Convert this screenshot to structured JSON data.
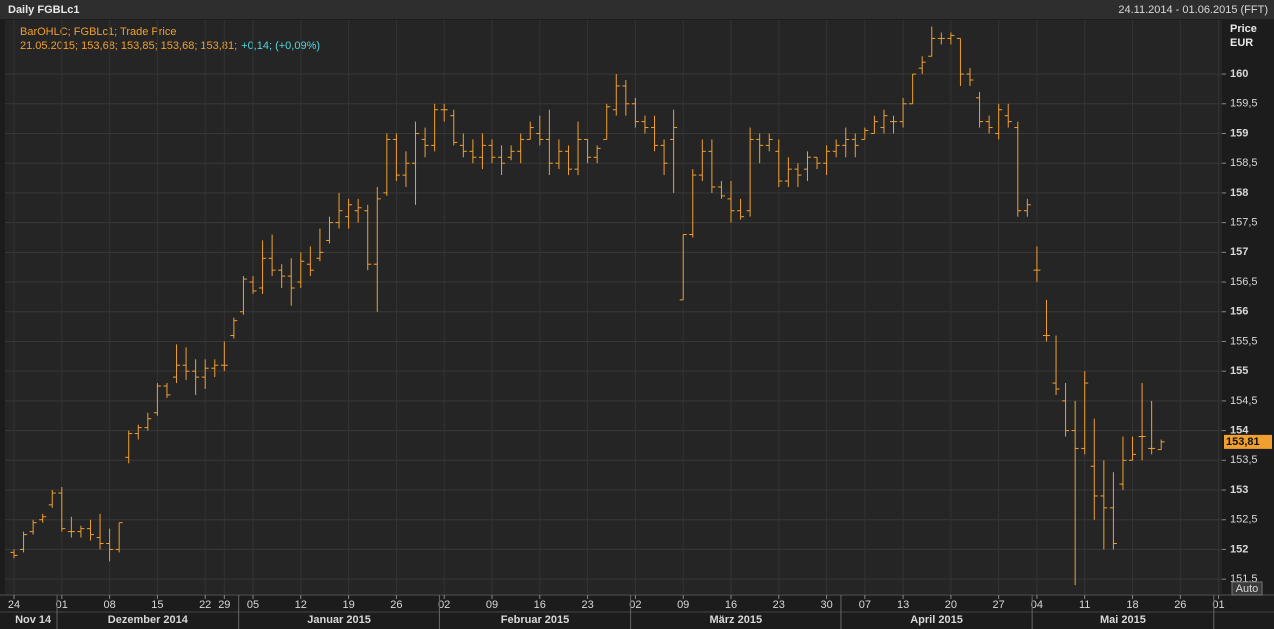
{
  "header": {
    "title": "Daily FGBLc1",
    "range": "24.11.2014 - 01.06.2015 (FFT)"
  },
  "chart_data": {
    "type": "ohlc",
    "legend": "BarOHLC; FGBLc1; Trade Price",
    "readout": "21.05.2015; 153,68; 153,85; 153,68; 153,81;",
    "readout_change": "+0,14; (+0,09%)",
    "y_axis_title": "Price",
    "y_axis_unit": "EUR",
    "auto_button": "Auto",
    "grid": true,
    "last_label": {
      "value": 153.81,
      "label": "153,81"
    },
    "ylim": [
      151.25,
      160.91
    ],
    "yticks": [
      {
        "value": 151.5,
        "label": "151,5"
      },
      152,
      {
        "value": 152.5,
        "label": "152,5"
      },
      153,
      {
        "value": 153.5,
        "label": "153,5"
      },
      154,
      {
        "value": 154.5,
        "label": "154,5"
      },
      155,
      {
        "value": 155.5,
        "label": "155,5"
      },
      156,
      {
        "value": 156.5,
        "label": "156,5"
      },
      157,
      {
        "value": 157.5,
        "label": "157,5"
      },
      158,
      {
        "value": 158.5,
        "label": "158,5"
      },
      159,
      {
        "value": 159.5,
        "label": "159,5"
      },
      160
    ],
    "x_groups": [
      {
        "label": "Nov 14",
        "count": 5
      },
      {
        "label": "Dezember 2014",
        "count": 19
      },
      {
        "label": "Januar 2015",
        "count": 21
      },
      {
        "label": "Februar 2015",
        "count": 20
      },
      {
        "label": "März 2015",
        "count": 22
      },
      {
        "label": "April 2015",
        "count": 20
      },
      {
        "label": "Mai 2015",
        "count": 19
      }
    ],
    "categories": [
      "24",
      null,
      null,
      null,
      null,
      "01",
      null,
      null,
      null,
      null,
      "08",
      null,
      null,
      null,
      null,
      "15",
      null,
      null,
      null,
      null,
      "22",
      null,
      "29",
      null,
      null,
      "05",
      null,
      null,
      null,
      null,
      "12",
      null,
      null,
      null,
      null,
      "19",
      null,
      null,
      null,
      null,
      "26",
      null,
      null,
      null,
      null,
      "02",
      null,
      null,
      null,
      null,
      "09",
      null,
      null,
      null,
      null,
      "16",
      null,
      null,
      null,
      null,
      "23",
      null,
      null,
      null,
      null,
      "02",
      null,
      null,
      null,
      null,
      "09",
      null,
      null,
      null,
      null,
      "16",
      null,
      null,
      null,
      null,
      "23",
      null,
      null,
      null,
      null,
      "30",
      null,
      null,
      null,
      "07",
      null,
      null,
      null,
      "13",
      null,
      null,
      null,
      null,
      "20",
      null,
      null,
      null,
      null,
      "27",
      null,
      null,
      null,
      "04",
      null,
      null,
      null,
      null,
      "11",
      null,
      null,
      null,
      null,
      "18",
      null,
      null,
      null,
      null,
      "26",
      null,
      null,
      null,
      "01"
    ],
    "series": [
      {
        "color": "#f0a030",
        "open": [
          151.95,
          152.0,
          152.3,
          152.5,
          152.75,
          152.95,
          152.3,
          152.3,
          152.35,
          152.2,
          152.1,
          152.0,
          153.55,
          153.95,
          154.05,
          154.3,
          154.75,
          154.9,
          155.1,
          155.0,
          154.9,
          155.05,
          155.1,
          155.6,
          156.0,
          156.5,
          156.4,
          156.9,
          156.7,
          156.6,
          156.5,
          156.8,
          156.9,
          157.2,
          157.5,
          157.6,
          157.7,
          157.7,
          156.8,
          158.0,
          158.9,
          158.3,
          158.5,
          158.9,
          158.8,
          159.4,
          159.3,
          158.8,
          158.7,
          158.6,
          158.8,
          158.6,
          158.6,
          158.7,
          158.9,
          159.0,
          158.9,
          158.5,
          158.7,
          158.4,
          158.9,
          158.6,
          158.9,
          159.4,
          159.8,
          159.5,
          159.2,
          159.1,
          158.8,
          158.9,
          156.2,
          157.3,
          158.3,
          158.7,
          158.1,
          157.9,
          157.7,
          157.7,
          158.9,
          158.8,
          158.7,
          158.2,
          158.4,
          158.4,
          158.6,
          158.5,
          158.7,
          158.8,
          158.9,
          158.9,
          159.0,
          159.1,
          159.2,
          159.2,
          159.5,
          160.1,
          160.3,
          160.6,
          160.6,
          160.6,
          160.0,
          159.6,
          159.2,
          159.0,
          159.3,
          159.1,
          157.7,
          156.7,
          155.6,
          154.8,
          154.5,
          154.0,
          153.7,
          153.4,
          152.9,
          152.7,
          153.1,
          153.5,
          153.9,
          153.7,
          153.68,
          null,
          null,
          null,
          null,
          null,
          null
        ],
        "high": [
          152.0,
          152.3,
          152.5,
          152.6,
          153.0,
          153.05,
          152.55,
          152.4,
          152.5,
          152.6,
          152.35,
          152.45,
          154.0,
          154.1,
          154.3,
          154.8,
          154.8,
          155.45,
          155.4,
          155.2,
          155.2,
          155.2,
          155.5,
          155.9,
          156.6,
          156.6,
          157.2,
          157.3,
          156.8,
          156.9,
          157.0,
          157.1,
          157.4,
          157.6,
          158.0,
          157.9,
          157.9,
          157.8,
          158.1,
          159.0,
          159.0,
          158.7,
          159.2,
          159.1,
          159.5,
          159.5,
          159.4,
          159.0,
          158.9,
          159.0,
          158.9,
          158.8,
          158.8,
          159.0,
          159.2,
          159.3,
          159.4,
          158.9,
          158.8,
          159.2,
          158.9,
          158.8,
          159.5,
          160.0,
          159.9,
          159.6,
          159.3,
          159.3,
          158.9,
          159.4,
          157.3,
          158.4,
          158.9,
          158.9,
          158.2,
          158.2,
          157.9,
          159.1,
          159.0,
          159.0,
          158.9,
          158.6,
          158.5,
          158.7,
          158.6,
          158.8,
          158.9,
          159.1,
          159.0,
          159.1,
          159.3,
          159.4,
          159.3,
          159.6,
          160.0,
          160.3,
          160.8,
          160.7,
          160.7,
          160.6,
          160.1,
          159.7,
          159.3,
          159.5,
          159.5,
          159.2,
          157.9,
          157.1,
          156.2,
          155.6,
          154.8,
          154.5,
          155.0,
          154.2,
          153.5,
          153.3,
          153.9,
          153.9,
          154.8,
          154.5,
          153.85,
          null,
          null,
          null,
          null,
          null,
          null
        ],
        "low": [
          151.85,
          151.95,
          152.25,
          152.45,
          152.7,
          152.3,
          152.2,
          152.2,
          152.15,
          152.0,
          151.8,
          151.95,
          153.45,
          153.85,
          154.0,
          154.25,
          154.55,
          154.8,
          154.85,
          154.6,
          154.7,
          154.9,
          155.0,
          155.55,
          155.95,
          156.3,
          156.3,
          156.6,
          156.4,
          156.1,
          156.4,
          156.6,
          156.85,
          157.15,
          157.4,
          157.4,
          157.5,
          156.7,
          156.0,
          157.95,
          158.2,
          158.1,
          157.8,
          158.6,
          158.7,
          159.2,
          158.8,
          158.6,
          158.5,
          158.4,
          158.5,
          158.3,
          158.55,
          158.5,
          158.9,
          158.8,
          158.3,
          158.4,
          158.3,
          158.3,
          158.5,
          158.5,
          158.9,
          159.3,
          159.3,
          159.1,
          159.0,
          158.7,
          158.3,
          158.0,
          156.2,
          157.25,
          158.2,
          158.0,
          157.9,
          157.5,
          157.55,
          157.6,
          158.5,
          158.7,
          158.1,
          158.1,
          158.1,
          158.2,
          158.4,
          158.3,
          158.6,
          158.6,
          158.6,
          158.9,
          159.0,
          159.0,
          159.0,
          159.1,
          159.5,
          160.0,
          160.3,
          160.5,
          160.5,
          159.8,
          159.8,
          159.1,
          159.0,
          158.9,
          159.1,
          157.6,
          157.6,
          156.5,
          155.5,
          154.6,
          153.9,
          151.4,
          153.6,
          152.5,
          152.0,
          152.0,
          153.0,
          153.5,
          153.5,
          153.6,
          153.68,
          null,
          null,
          null,
          null,
          null,
          null
        ],
        "close": [
          151.9,
          152.25,
          152.45,
          152.55,
          152.95,
          152.35,
          152.3,
          152.35,
          152.25,
          152.1,
          152.0,
          152.45,
          153.95,
          154.05,
          154.2,
          154.75,
          154.6,
          155.1,
          155.0,
          154.9,
          155.05,
          155.1,
          155.1,
          155.85,
          156.55,
          156.35,
          156.9,
          156.7,
          156.6,
          156.4,
          156.85,
          156.7,
          157.0,
          157.5,
          157.7,
          157.8,
          157.75,
          156.8,
          157.9,
          158.9,
          158.3,
          158.5,
          159.0,
          158.8,
          159.4,
          159.4,
          158.85,
          158.7,
          158.6,
          158.8,
          158.6,
          158.5,
          158.7,
          158.9,
          159.1,
          158.9,
          158.5,
          158.7,
          158.4,
          158.9,
          158.6,
          158.75,
          159.45,
          159.8,
          159.5,
          159.2,
          159.1,
          158.8,
          158.5,
          159.1,
          157.3,
          158.3,
          158.7,
          158.1,
          157.95,
          157.7,
          157.6,
          158.9,
          158.8,
          158.9,
          158.2,
          158.4,
          158.3,
          158.6,
          158.5,
          158.7,
          158.8,
          158.9,
          158.8,
          159.05,
          159.2,
          159.3,
          159.2,
          159.5,
          160.0,
          160.2,
          160.6,
          160.6,
          160.65,
          160.0,
          159.9,
          159.2,
          159.1,
          159.4,
          159.2,
          157.7,
          157.8,
          156.7,
          155.6,
          154.7,
          154.0,
          153.7,
          154.8,
          152.9,
          152.7,
          152.1,
          153.5,
          153.6,
          153.9,
          153.7,
          153.81,
          null,
          null,
          null,
          null,
          null,
          null
        ]
      }
    ]
  }
}
